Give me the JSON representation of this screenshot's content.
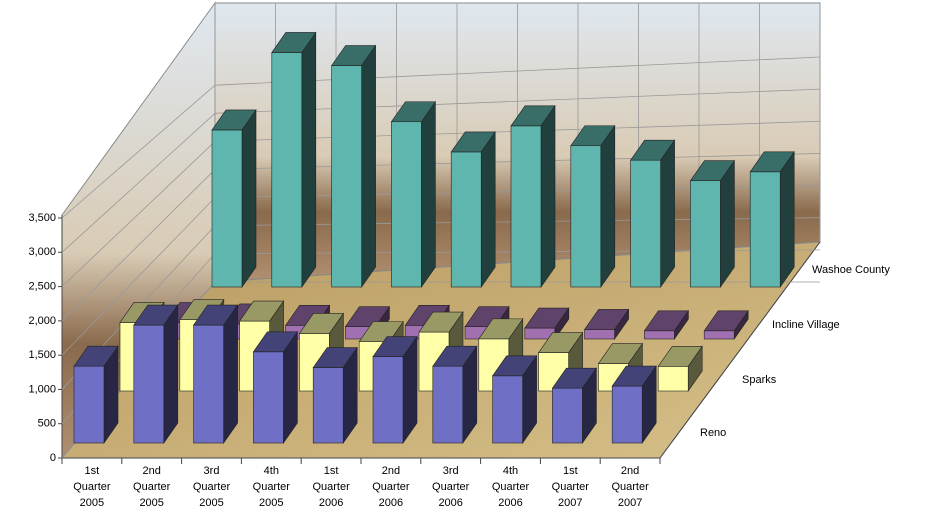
{
  "chart_data": {
    "type": "bar3d",
    "categories": [
      "1st Quarter 2005",
      "2nd Quarter 2005",
      "3rd Quarter 2005",
      "4th Quarter 2005",
      "1st Quarter 2006",
      "2nd Quarter 2006",
      "3rd Quarter 2006",
      "4th Quarter 2006",
      "1st Quarter 2007",
      "2nd Quarter 2007"
    ],
    "series": [
      {
        "name": "Reno",
        "color": "#6f6fc6",
        "values": [
          1120,
          1720,
          1720,
          1330,
          1100,
          1260,
          1120,
          980,
          800,
          830
        ]
      },
      {
        "name": "Sparks",
        "color": "#ffffa8",
        "values": [
          1000,
          1040,
          1020,
          840,
          720,
          860,
          760,
          560,
          400,
          360
        ]
      },
      {
        "name": "Incline Village",
        "color": "#a070b0",
        "values": [
          240,
          220,
          200,
          180,
          200,
          180,
          160,
          140,
          120,
          120
        ]
      },
      {
        "name": "Washoe County",
        "color": "#5fb6ae",
        "values": [
          2290,
          3420,
          3230,
          2410,
          1970,
          2350,
          2060,
          1850,
          1550,
          1680
        ]
      }
    ],
    "ylim": [
      0,
      3500
    ],
    "yticks": [
      0,
      {
        "value": 500,
        "label": "500"
      },
      {
        "value": 1000,
        "label": "1,000"
      },
      {
        "value": 1500,
        "label": "1,500"
      },
      {
        "value": 2000,
        "label": "2,000"
      },
      {
        "value": 2500,
        "label": "2,500"
      },
      {
        "value": 3000,
        "label": "3,000"
      },
      {
        "value": 3500,
        "label": "3,500"
      }
    ],
    "grid": true
  }
}
